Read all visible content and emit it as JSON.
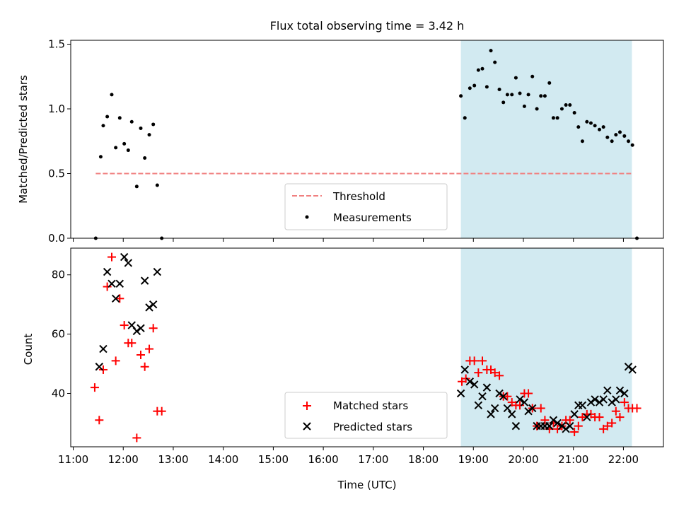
{
  "chart_data": [
    {
      "type": "scatter",
      "title": "Flux total observing time = 3.42 h",
      "ylabel": "Matched/Predicted stars",
      "xlabel": "",
      "xlim": [
        10.95,
        22.8
      ],
      "ylim": [
        0,
        1.53
      ],
      "yticks": [
        0.0,
        0.5,
        1.0,
        1.5
      ],
      "ytick_labels": [
        "0.0",
        "0.5",
        "1.0",
        "1.5"
      ],
      "highlight_span": {
        "x": [
          18.75,
          22.17
        ],
        "color": "#add8e6"
      },
      "legend": {
        "position": "bottom-center",
        "entries": [
          "Threshold",
          "Measurements"
        ]
      },
      "series": [
        {
          "name": "Threshold",
          "kind": "dashed-line",
          "color": "#f08080",
          "x": [
            11.45,
            22.17
          ],
          "y": [
            0.5,
            0.5
          ]
        },
        {
          "name": "Measurements",
          "kind": "dot",
          "color": "#000000",
          "x": [
            11.45,
            11.55,
            11.6,
            11.68,
            11.77,
            11.85,
            11.93,
            12.02,
            12.1,
            12.17,
            12.27,
            12.35,
            12.43,
            12.52,
            12.6,
            12.68,
            12.77,
            18.75,
            18.83,
            18.93,
            19.02,
            19.1,
            19.18,
            19.27,
            19.35,
            19.43,
            19.52,
            19.6,
            19.68,
            19.77,
            19.85,
            19.93,
            20.02,
            20.1,
            20.18,
            20.27,
            20.35,
            20.43,
            20.52,
            20.6,
            20.68,
            20.77,
            20.85,
            20.93,
            21.02,
            21.1,
            21.18,
            21.27,
            21.35,
            21.43,
            21.52,
            21.6,
            21.68,
            21.77,
            21.85,
            21.93,
            22.02,
            22.1,
            22.18,
            22.27
          ],
          "y": [
            0.0,
            0.63,
            0.87,
            0.94,
            1.11,
            0.7,
            0.93,
            0.73,
            0.68,
            0.9,
            0.4,
            0.85,
            0.62,
            0.8,
            0.88,
            0.41,
            0.0,
            1.1,
            0.93,
            1.16,
            1.18,
            1.3,
            1.31,
            1.17,
            1.45,
            1.36,
            1.15,
            1.05,
            1.11,
            1.11,
            1.24,
            1.12,
            1.02,
            1.11,
            1.25,
            1.0,
            1.1,
            1.1,
            1.2,
            0.93,
            0.93,
            1.0,
            1.03,
            1.03,
            0.97,
            0.86,
            0.75,
            0.9,
            0.89,
            0.87,
            0.84,
            0.86,
            0.78,
            0.75,
            0.8,
            0.82,
            0.79,
            0.75,
            0.72,
            0.0
          ]
        }
      ]
    },
    {
      "type": "scatter",
      "title": "",
      "ylabel": "Count",
      "xlabel": "Time (UTC)",
      "xlim": [
        10.95,
        22.8
      ],
      "ylim": [
        22,
        89
      ],
      "yticks": [
        40,
        60,
        80
      ],
      "ytick_labels": [
        "40",
        "60",
        "80"
      ],
      "xticks": [
        11,
        12,
        13,
        14,
        15,
        16,
        17,
        18,
        19,
        20,
        21,
        22
      ],
      "xtick_labels": [
        "11:00",
        "12:00",
        "13:00",
        "14:00",
        "15:00",
        "16:00",
        "17:00",
        "18:00",
        "19:00",
        "20:00",
        "21:00",
        "22:00"
      ],
      "highlight_span": {
        "x": [
          18.75,
          22.17
        ],
        "color": "#add8e6"
      },
      "legend": {
        "position": "bottom-center",
        "entries": [
          "Matched stars",
          "Predicted stars"
        ]
      },
      "series": [
        {
          "name": "Matched stars",
          "kind": "plus",
          "color": "#ff0000",
          "x": [
            11.43,
            11.52,
            11.6,
            11.68,
            11.77,
            11.85,
            11.93,
            12.02,
            12.1,
            12.17,
            12.27,
            12.35,
            12.43,
            12.52,
            12.6,
            12.68,
            12.77,
            18.77,
            18.85,
            18.93,
            19.02,
            19.1,
            19.18,
            19.27,
            19.35,
            19.43,
            19.52,
            19.6,
            19.68,
            19.77,
            19.85,
            19.93,
            20.02,
            20.1,
            20.18,
            20.27,
            20.35,
            20.43,
            20.52,
            20.6,
            20.68,
            20.77,
            20.85,
            20.93,
            21.02,
            21.1,
            21.18,
            21.27,
            21.35,
            21.43,
            21.52,
            21.6,
            21.68,
            21.77,
            21.85,
            21.93,
            22.02,
            22.1,
            22.18,
            22.27
          ],
          "y": [
            42,
            31,
            48,
            76,
            86,
            51,
            72,
            63,
            57,
            57,
            25,
            53,
            49,
            55,
            62,
            34,
            34,
            44,
            45,
            51,
            51,
            47,
            51,
            48,
            48,
            47,
            46,
            39,
            39,
            37,
            36,
            36,
            40,
            40,
            35,
            29,
            35,
            31,
            28,
            30,
            28,
            29,
            31,
            31,
            27,
            29,
            32,
            33,
            33,
            32,
            32,
            28,
            29,
            30,
            34,
            32,
            37,
            35,
            35,
            35
          ],
          "x_": null
        },
        {
          "name": "Predicted stars",
          "kind": "cross",
          "color": "#000000",
          "x": [
            11.52,
            11.6,
            11.68,
            11.77,
            11.85,
            11.93,
            12.02,
            12.1,
            12.17,
            12.27,
            12.35,
            12.43,
            12.52,
            12.6,
            12.68,
            18.75,
            18.83,
            18.93,
            19.02,
            19.1,
            19.18,
            19.27,
            19.35,
            19.43,
            19.52,
            19.6,
            19.68,
            19.77,
            19.85,
            19.93,
            20.02,
            20.1,
            20.18,
            20.27,
            20.35,
            20.43,
            20.52,
            20.6,
            20.68,
            20.77,
            20.85,
            20.93,
            21.02,
            21.1,
            21.18,
            21.27,
            21.35,
            21.43,
            21.52,
            21.6,
            21.68,
            21.77,
            21.85,
            21.93,
            22.02,
            22.1,
            22.18
          ],
          "y": [
            49,
            55,
            81,
            77,
            72,
            77,
            86,
            84,
            63,
            61,
            62,
            78,
            69,
            70,
            81,
            40,
            48,
            44,
            43,
            36,
            39,
            42,
            33,
            35,
            40,
            39,
            35,
            33,
            29,
            38,
            37,
            34,
            35,
            29,
            29,
            29,
            29,
            31,
            30,
            29,
            28,
            29,
            33,
            36,
            36,
            32,
            37,
            38,
            37,
            38,
            41,
            37,
            38,
            41,
            40,
            49,
            48
          ]
        }
      ]
    }
  ]
}
